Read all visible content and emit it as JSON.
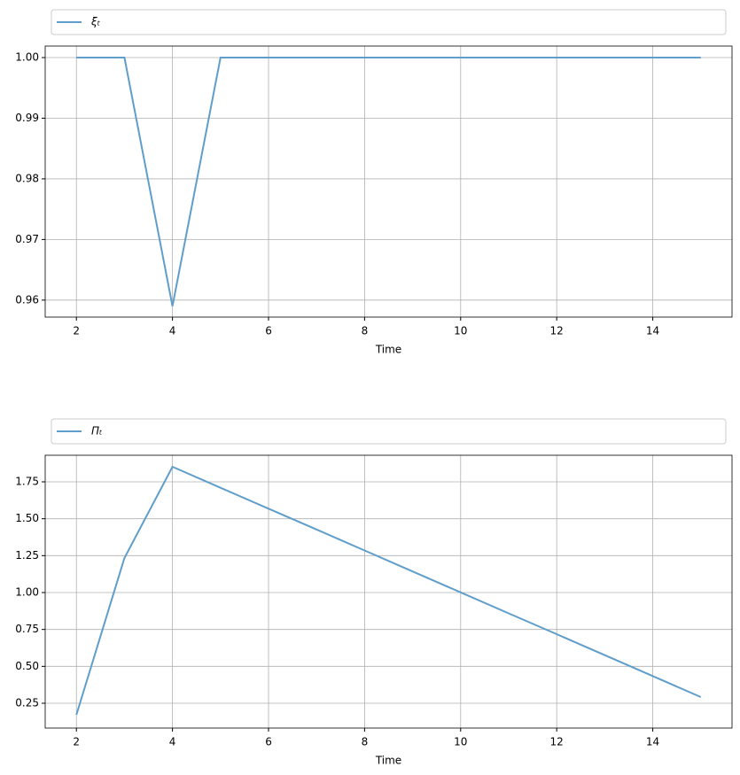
{
  "chart_data": [
    {
      "type": "line",
      "xlabel": "Time",
      "grid": true,
      "legend": "above",
      "x": [
        2,
        3,
        4,
        5,
        6,
        7,
        8,
        9,
        10,
        11,
        12,
        13,
        14,
        15
      ],
      "series": [
        {
          "name": "ξₜ",
          "color": "#5f9ecb",
          "values": [
            1.0,
            1.0,
            0.959,
            1.0,
            1.0,
            1.0,
            1.0,
            1.0,
            1.0,
            1.0,
            1.0,
            1.0,
            1.0,
            1.0
          ]
        }
      ],
      "xlim": [
        1.35,
        15.65
      ],
      "ylim": [
        0.9572,
        1.0019
      ],
      "xticks": [
        2,
        4,
        6,
        8,
        10,
        12,
        14
      ],
      "yticks": [
        {
          "value": 0.96,
          "label": "0.96"
        },
        {
          "value": 0.97,
          "label": "0.97"
        },
        {
          "value": 0.98,
          "label": "0.98"
        },
        {
          "value": 0.99,
          "label": "0.99"
        },
        {
          "value": 1.0,
          "label": "1.00"
        }
      ]
    },
    {
      "type": "line",
      "xlabel": "Time",
      "grid": true,
      "legend": "above",
      "x": [
        2,
        3,
        4,
        5,
        6,
        7,
        8,
        9,
        10,
        11,
        12,
        13,
        14,
        15
      ],
      "series": [
        {
          "name": "Πₜ",
          "color": "#5f9ecb",
          "values": [
            0.172,
            1.234,
            1.852,
            1.71,
            1.568,
            1.427,
            1.285,
            1.143,
            1.001,
            0.859,
            0.718,
            0.576,
            0.434,
            0.292
          ]
        }
      ],
      "xlim": [
        1.35,
        15.65
      ],
      "ylim": [
        0.082,
        1.93
      ],
      "xticks": [
        2,
        4,
        6,
        8,
        10,
        12,
        14
      ],
      "yticks": [
        0.25,
        {
          "value": 0.5,
          "label": "0.50"
        },
        0.75,
        {
          "value": 1.0,
          "label": "1.00"
        },
        1.25,
        {
          "value": 1.5,
          "label": "1.50"
        },
        1.75
      ]
    }
  ]
}
